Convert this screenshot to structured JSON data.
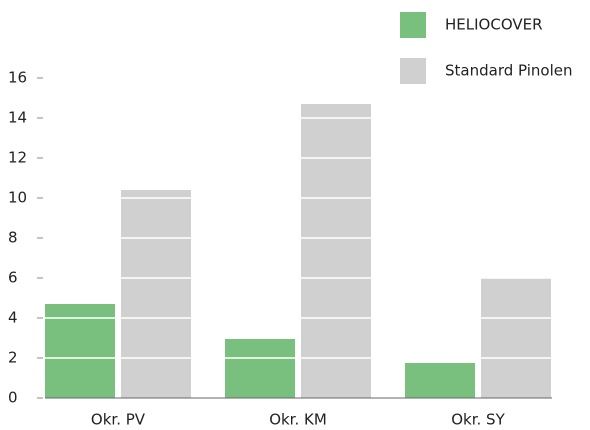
{
  "chart_data": {
    "type": "bar",
    "categories": [
      "Okr. PV",
      "Okr. KM",
      "Okr. SY"
    ],
    "series": [
      {
        "name": "HELIOCOVER",
        "color": "#79c07f",
        "values": [
          4.7,
          2.95,
          1.75
        ]
      },
      {
        "name": "Standard Pinolen",
        "color": "#d0d0d0",
        "values": [
          10.4,
          14.7,
          6.0
        ]
      }
    ],
    "ylim": [
      0,
      16
    ],
    "yticks": [
      0,
      2,
      4,
      6,
      8,
      10,
      12,
      14,
      16
    ],
    "grid": true,
    "legend": "top-right"
  }
}
